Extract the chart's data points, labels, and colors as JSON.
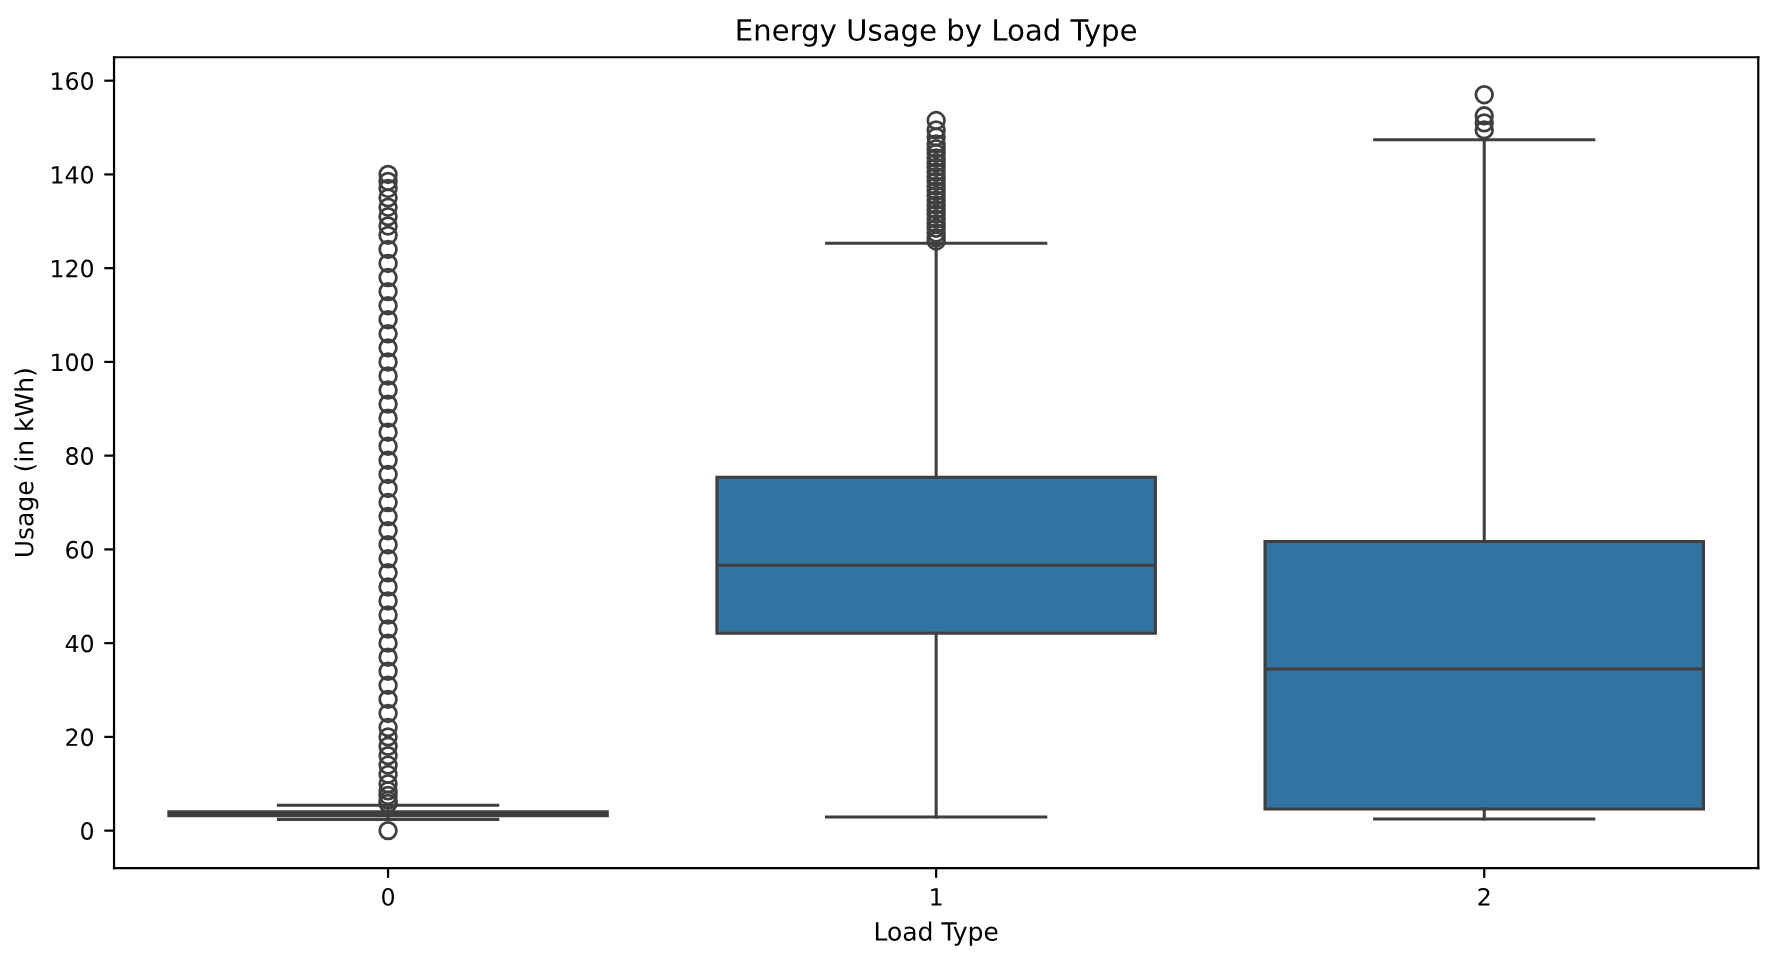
{
  "chart_data": {
    "type": "box",
    "title": "Energy Usage by Load Type",
    "xlabel": "Load Type",
    "ylabel": "Usage (in kWh)",
    "categories": [
      "0",
      "1",
      "2"
    ],
    "color": "#3274a1",
    "ylim": [
      -8,
      165
    ],
    "yticks": [
      0,
      20,
      40,
      60,
      80,
      100,
      120,
      140,
      160
    ],
    "grid": false,
    "legend": false,
    "marker": "circle",
    "boxes": [
      {
        "low": 2.4,
        "q1": 3.2,
        "median": 3.5,
        "q3": 4.0,
        "high": 5.4,
        "outliers": [
          0,
          5.8,
          6.5,
          7.5,
          8.5,
          10,
          12,
          14,
          16,
          18,
          20,
          22,
          25,
          28,
          31,
          34,
          37,
          40,
          43,
          46,
          49,
          52,
          55,
          58,
          61,
          64,
          67,
          70,
          73,
          76,
          79,
          82,
          85,
          88,
          91,
          94,
          97,
          100,
          103,
          106,
          109,
          112,
          115,
          118,
          121,
          124,
          127,
          129,
          131,
          133,
          135,
          137,
          138.5,
          140
        ]
      },
      {
        "low": 2.9,
        "q1": 42.1,
        "median": 56.6,
        "q3": 75.4,
        "high": 125.3,
        "outliers": [
          125.8,
          126.5,
          127.5,
          128.5,
          129.5,
          130.5,
          131.5,
          132.5,
          133.5,
          134.5,
          135.5,
          136.5,
          137.5,
          138.5,
          139.5,
          140.5,
          141.5,
          142.5,
          143.5,
          144.5,
          145.5,
          146.5,
          148,
          149.5,
          151.5
        ]
      },
      {
        "low": 2.5,
        "q1": 4.6,
        "median": 34.5,
        "q3": 61.7,
        "high": 147.4,
        "outliers": [
          149.5,
          151,
          152.5,
          157
        ]
      }
    ]
  }
}
